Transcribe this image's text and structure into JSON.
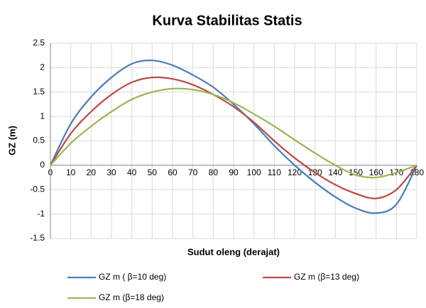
{
  "chart_data": {
    "type": "line",
    "title": "Kurva Stabilitas Statis",
    "x_label": "Sudut oleng (derajat)",
    "y_label": "GZ (m)",
    "x": [
      0,
      10,
      20,
      30,
      40,
      50,
      60,
      70,
      80,
      90,
      100,
      110,
      120,
      130,
      140,
      150,
      160,
      170,
      180
    ],
    "series": [
      {
        "name": "GZ m ( β=10 deg)",
        "color": "#4a7ebb",
        "values": [
          0,
          0.85,
          1.4,
          1.8,
          2.08,
          2.15,
          2.05,
          1.85,
          1.6,
          1.25,
          0.85,
          0.4,
          0,
          -0.35,
          -0.65,
          -0.88,
          -0.98,
          -0.8,
          0
        ]
      },
      {
        "name": "GZ m (β=13 deg)",
        "color": "#be4b48",
        "values": [
          0,
          0.65,
          1.1,
          1.45,
          1.7,
          1.8,
          1.77,
          1.65,
          1.45,
          1.2,
          0.88,
          0.5,
          0.15,
          -0.15,
          -0.4,
          -0.58,
          -0.68,
          -0.5,
          0
        ]
      },
      {
        "name": "GZ m (β=18 deg)",
        "color": "#98b954",
        "values": [
          0,
          0.45,
          0.8,
          1.1,
          1.35,
          1.5,
          1.57,
          1.55,
          1.45,
          1.28,
          1.05,
          0.8,
          0.52,
          0.25,
          0,
          -0.2,
          -0.25,
          -0.15,
          0
        ]
      }
    ],
    "xlim": [
      0,
      180
    ],
    "xticks": [
      0,
      10,
      20,
      30,
      40,
      50,
      60,
      70,
      80,
      90,
      100,
      110,
      120,
      130,
      140,
      150,
      160,
      170,
      180
    ],
    "ylim": [
      -1.5,
      2.5
    ],
    "yticks": [
      -1.5,
      -1,
      -0.5,
      0,
      0.5,
      1,
      1.5,
      2,
      2.5
    ],
    "grid": true,
    "legend": "bottom"
  }
}
